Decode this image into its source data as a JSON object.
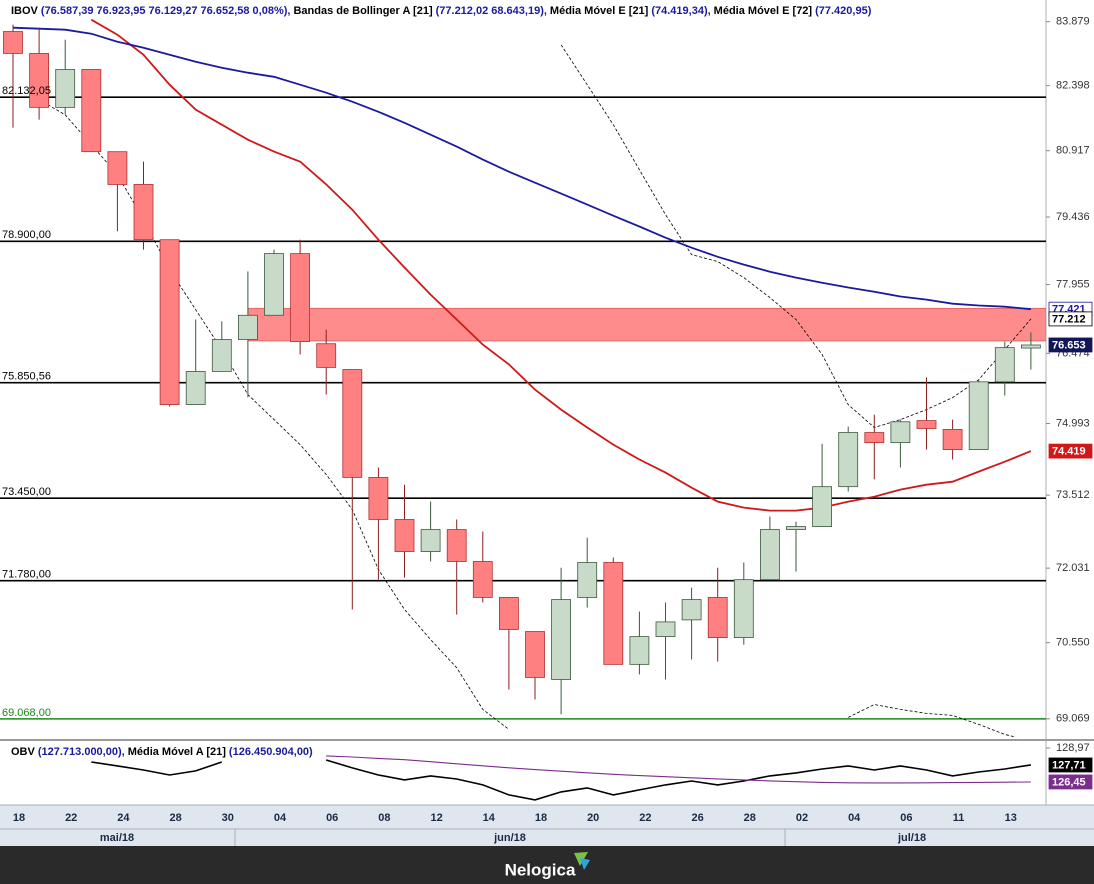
{
  "chart_data": [
    {
      "type": "candlestick",
      "log_scale": true,
      "categories": [
        "18",
        null,
        "22",
        null,
        "24",
        null,
        "28",
        null,
        "30",
        null,
        "04",
        null,
        "06",
        null,
        "08",
        null,
        "12",
        null,
        "14",
        null,
        "18",
        null,
        "20",
        null,
        "22",
        null,
        "26",
        null,
        "28",
        null,
        "02",
        null,
        "04",
        null,
        "06",
        null,
        "11",
        null,
        "13",
        null
      ],
      "months": [
        "mai/18",
        "jun/18",
        "jul/18"
      ],
      "name": "IBOV",
      "legend_label": "(76.587,39  76.923,95  76.129,27  76.652,58  0,08%),",
      "up_color": "#c8dac8",
      "down_color": "#ff8080",
      "open": [
        83650,
        83140,
        81900,
        82770,
        80895,
        80160,
        78935,
        75390,
        76090,
        76770,
        77290,
        78630,
        76680,
        76130,
        73875,
        73015,
        72365,
        72810,
        72165,
        71445,
        70770,
        69830,
        71445,
        72145,
        70125,
        70670,
        71000,
        71445,
        70650,
        71800,
        72810,
        72870,
        73685,
        74805,
        74595,
        75055,
        74870,
        74450,
        75870,
        76587.39
      ],
      "high": [
        83810,
        83740,
        83460,
        82770,
        80895,
        80670,
        78935,
        77200,
        77160,
        78240,
        78716,
        78935,
        76980,
        76130,
        74080,
        73725,
        73380,
        73015,
        72770,
        71445,
        70770,
        72040,
        72645,
        72245,
        71165,
        71345,
        71640,
        72040,
        72145,
        73075,
        72970,
        74570,
        74930,
        75180,
        75075,
        75960,
        75075,
        75915,
        76725,
        76923.95
      ],
      "low": [
        81440,
        81620,
        81740,
        80895,
        79120,
        78716,
        75350,
        75390,
        76090,
        75540,
        77290,
        76450,
        75600,
        71205,
        71800,
        71840,
        72165,
        71105,
        71345,
        69635,
        69442,
        69155,
        71245,
        70125,
        69930,
        69830,
        70220,
        70180,
        70510,
        71800,
        71960,
        72870,
        73585,
        73835,
        74080,
        74450,
        74245,
        74450,
        75580,
        76129.27
      ],
      "close": [
        83140,
        81900,
        82770,
        80895,
        80160,
        78935,
        75390,
        76090,
        76770,
        77290,
        78630,
        76725,
        76175,
        73875,
        73015,
        72365,
        72810,
        72165,
        71445,
        70810,
        69870,
        71403,
        72145,
        70125,
        70670,
        70960,
        71403,
        70650,
        71800,
        72810,
        72870,
        73685,
        74805,
        74595,
        75030,
        74890,
        74450,
        75870,
        76596,
        76652.58
      ],
      "bollinger": {
        "name": "Bandas de Bollinger A [21]",
        "legend_label": "(77.212,02  68.643,19),",
        "color": "#000000",
        "upper": [
          null,
          null,
          null,
          null,
          null,
          null,
          null,
          null,
          null,
          null,
          null,
          null,
          null,
          null,
          null,
          null,
          null,
          null,
          null,
          null,
          null,
          83342,
          82420,
          81505,
          80490,
          79490,
          78607,
          78455,
          78105,
          77671,
          77200,
          76450,
          75390,
          74910,
          75075,
          75285,
          75537,
          75915,
          76554,
          77212.02
        ],
        "lower": [
          null,
          82076,
          81730,
          81055,
          80380,
          79380,
          78280,
          77410,
          76554,
          75600,
          75075,
          74555,
          73935,
          73215,
          72005,
          71205,
          70610,
          70060,
          69250,
          68865,
          null,
          null,
          null,
          null,
          null,
          null,
          null,
          null,
          null,
          null,
          null,
          null,
          69096,
          69346,
          69250,
          69173,
          69135,
          68962,
          68770,
          68643.19
        ]
      },
      "series": [
        {
          "name": "Média Móvel E [21]",
          "legend_label": "(74.419,34),",
          "color": "#d01818",
          "values": [
            null,
            null,
            null,
            83925,
            83576,
            83110,
            82420,
            81847,
            81505,
            81166,
            80896,
            80671,
            80160,
            79598,
            78935,
            78325,
            77737,
            77200,
            76660,
            76240,
            75705,
            75285,
            74910,
            74555,
            74245,
            73975,
            73665,
            73380,
            73257,
            73195,
            73195,
            73257,
            73380,
            73480,
            73625,
            73725,
            73787,
            73995,
            74200,
            74419.34
          ]
        },
        {
          "name": "Média Móvel E [72]",
          "legend_label": "(77.420,95)",
          "color": "#1a1aa0",
          "values": [
            83739,
            83716,
            83692,
            83600,
            83413,
            83273,
            83110,
            82950,
            82810,
            82695,
            82600,
            82420,
            82236,
            82030,
            81800,
            81550,
            81280,
            81010,
            80716,
            80445,
            80200,
            79955,
            79710,
            79465,
            79225,
            78980,
            78760,
            78560,
            78390,
            78235,
            78105,
            77995,
            77890,
            77800,
            77695,
            77628,
            77540,
            77500,
            77475,
            77420.95
          ]
        }
      ],
      "zone": {
        "from": 76740,
        "to": 77440,
        "color": "#ff8c8c"
      },
      "levels": [
        {
          "value": 82132.05,
          "label": "82.132,05",
          "color": "#000000"
        },
        {
          "value": 78900,
          "label": "78.900,00",
          "color": "#000000"
        },
        {
          "value": 75850.56,
          "label": "75.850,56",
          "color": "#000000"
        },
        {
          "value": 73450,
          "label": "73.450,00",
          "color": "#000000"
        },
        {
          "value": 71780,
          "label": "71.780,00",
          "color": "#000000"
        },
        {
          "value": 69068,
          "label": "69.068,00",
          "color": "#1a8a1a"
        }
      ],
      "ylim": [
        68720,
        84200
      ],
      "yticks": [
        {
          "value": 83879,
          "label": "83.879"
        },
        {
          "value": 82398,
          "label": "82.398"
        },
        {
          "value": 80917,
          "label": "80.917"
        },
        {
          "value": 79436,
          "label": "79.436"
        },
        {
          "value": 77955,
          "label": "77.955"
        },
        {
          "value": 76474,
          "label": "76.474"
        },
        {
          "value": 74993,
          "label": "74.993"
        },
        {
          "value": 73512,
          "label": "73.512"
        },
        {
          "value": 72031,
          "label": "72.031"
        },
        {
          "value": 70550,
          "label": "70.550"
        },
        {
          "value": 69069,
          "label": "69.069"
        }
      ],
      "last_labels": [
        {
          "value": 77421,
          "label": "77.421",
          "bg": "#ffffff",
          "fg": "#1a1aa0"
        },
        {
          "value": 77212,
          "label": "77.212",
          "bg": "#ffffff",
          "fg": "#000000"
        },
        {
          "value": 76653,
          "label": "76.653",
          "bg": "#14145a",
          "fg": "#ffffff"
        },
        {
          "value": 74419,
          "label": "74.419",
          "bg": "#d01818",
          "fg": "#ffffff"
        }
      ]
    },
    {
      "type": "line",
      "series": [
        {
          "name": "OBV",
          "legend_label": "(127.713.000,00),",
          "color": "#000000",
          "values": [
            null,
            null,
            null,
            127.93,
            127.64,
            127.34,
            126.97,
            127.27,
            127.93,
            null,
            null,
            null,
            128.08,
            127.49,
            126.97,
            126.6,
            126.9,
            126.67,
            126.23,
            125.49,
            125.12,
            125.71,
            126.01,
            125.49,
            125.86,
            126.23,
            126.52,
            126.23,
            126.52,
            126.9,
            127.12,
            127.41,
            127.64,
            127.34,
            127.64,
            127.34,
            126.9,
            127.19,
            127.41,
            127.713
          ]
        },
        {
          "name": "Média Móvel A [21]",
          "legend_label": "(126.450.904,00)",
          "color": "#7b2d8e",
          "values": [
            null,
            null,
            null,
            null,
            null,
            null,
            null,
            null,
            null,
            null,
            null,
            null,
            128.38,
            128.3,
            128.2,
            128.1,
            127.95,
            127.8,
            127.65,
            127.5,
            127.37,
            127.25,
            127.13,
            127.02,
            126.92,
            126.84,
            126.76,
            126.68,
            126.6,
            126.53,
            126.47,
            126.42,
            126.39,
            126.38,
            126.38,
            126.39,
            126.4,
            126.42,
            126.43,
            126.450904
          ]
        }
      ],
      "ylim": [
        124.89,
        129.34
      ],
      "yticks": [
        {
          "value": 128.97,
          "label": "128,97"
        }
      ],
      "last_labels": [
        {
          "value": 127.71,
          "label": "127,71",
          "bg": "#000000",
          "fg": "#ffffff"
        },
        {
          "value": 126.45,
          "label": "126,45",
          "bg": "#7b2d8e",
          "fg": "#ffffff"
        }
      ]
    }
  ],
  "footer": {
    "brand": "Nelogica"
  }
}
